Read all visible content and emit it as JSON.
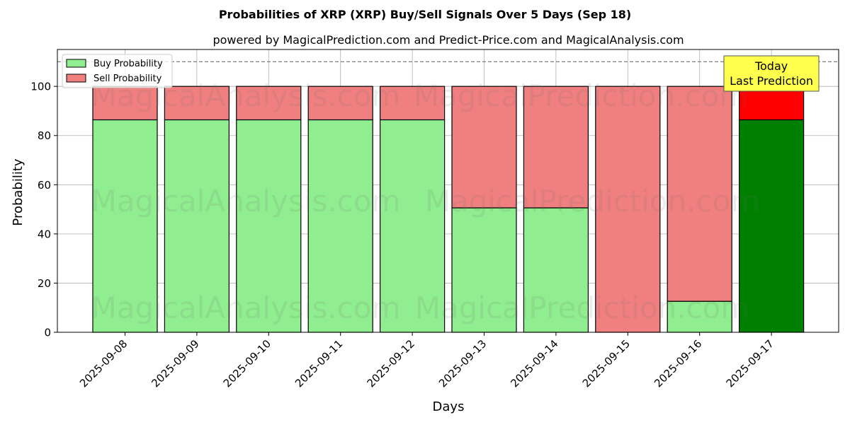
{
  "chart_data": {
    "type": "bar",
    "title": "Probabilities of XRP (XRP) Buy/Sell Signals Over 5 Days (Sep 18)",
    "subtitle": "powered by MagicalPrediction.com and Predict-Price.com and MagicalAnalysis.com",
    "xlabel": "Days",
    "ylabel": "Probability",
    "ylim": [
      0,
      115
    ],
    "yticks": [
      0,
      20,
      40,
      60,
      80,
      100
    ],
    "categories": [
      "2025-09-08",
      "2025-09-09",
      "2025-09-10",
      "2025-09-11",
      "2025-09-12",
      "2025-09-13",
      "2025-09-14",
      "2025-09-15",
      "2025-09-16",
      "2025-09-17"
    ],
    "series": [
      {
        "name": "Buy Probability",
        "values": [
          86.4,
          86.4,
          86.4,
          86.4,
          86.4,
          50.6,
          50.6,
          0,
          12.6,
          86.4
        ],
        "color": "#90ee90",
        "highlight_color": "#008000"
      },
      {
        "name": "Sell Probability",
        "values": [
          13.6,
          13.6,
          13.6,
          13.6,
          13.6,
          49.4,
          49.4,
          100,
          87.4,
          13.6
        ],
        "color": "#f08080",
        "highlight_color": "#ff0000"
      }
    ],
    "stacked": true,
    "highlight_index": 9,
    "reference_line": {
      "value": 110,
      "style": "dashed",
      "color": "#808080"
    },
    "annotation": {
      "lines": [
        "Today",
        "Last Prediction"
      ],
      "bg": "#ffff4d"
    },
    "legend": {
      "placement": "top-left"
    },
    "grid": true,
    "watermarks": [
      "MagicalAnalysis.com",
      "MagicalPrediction.com"
    ]
  }
}
